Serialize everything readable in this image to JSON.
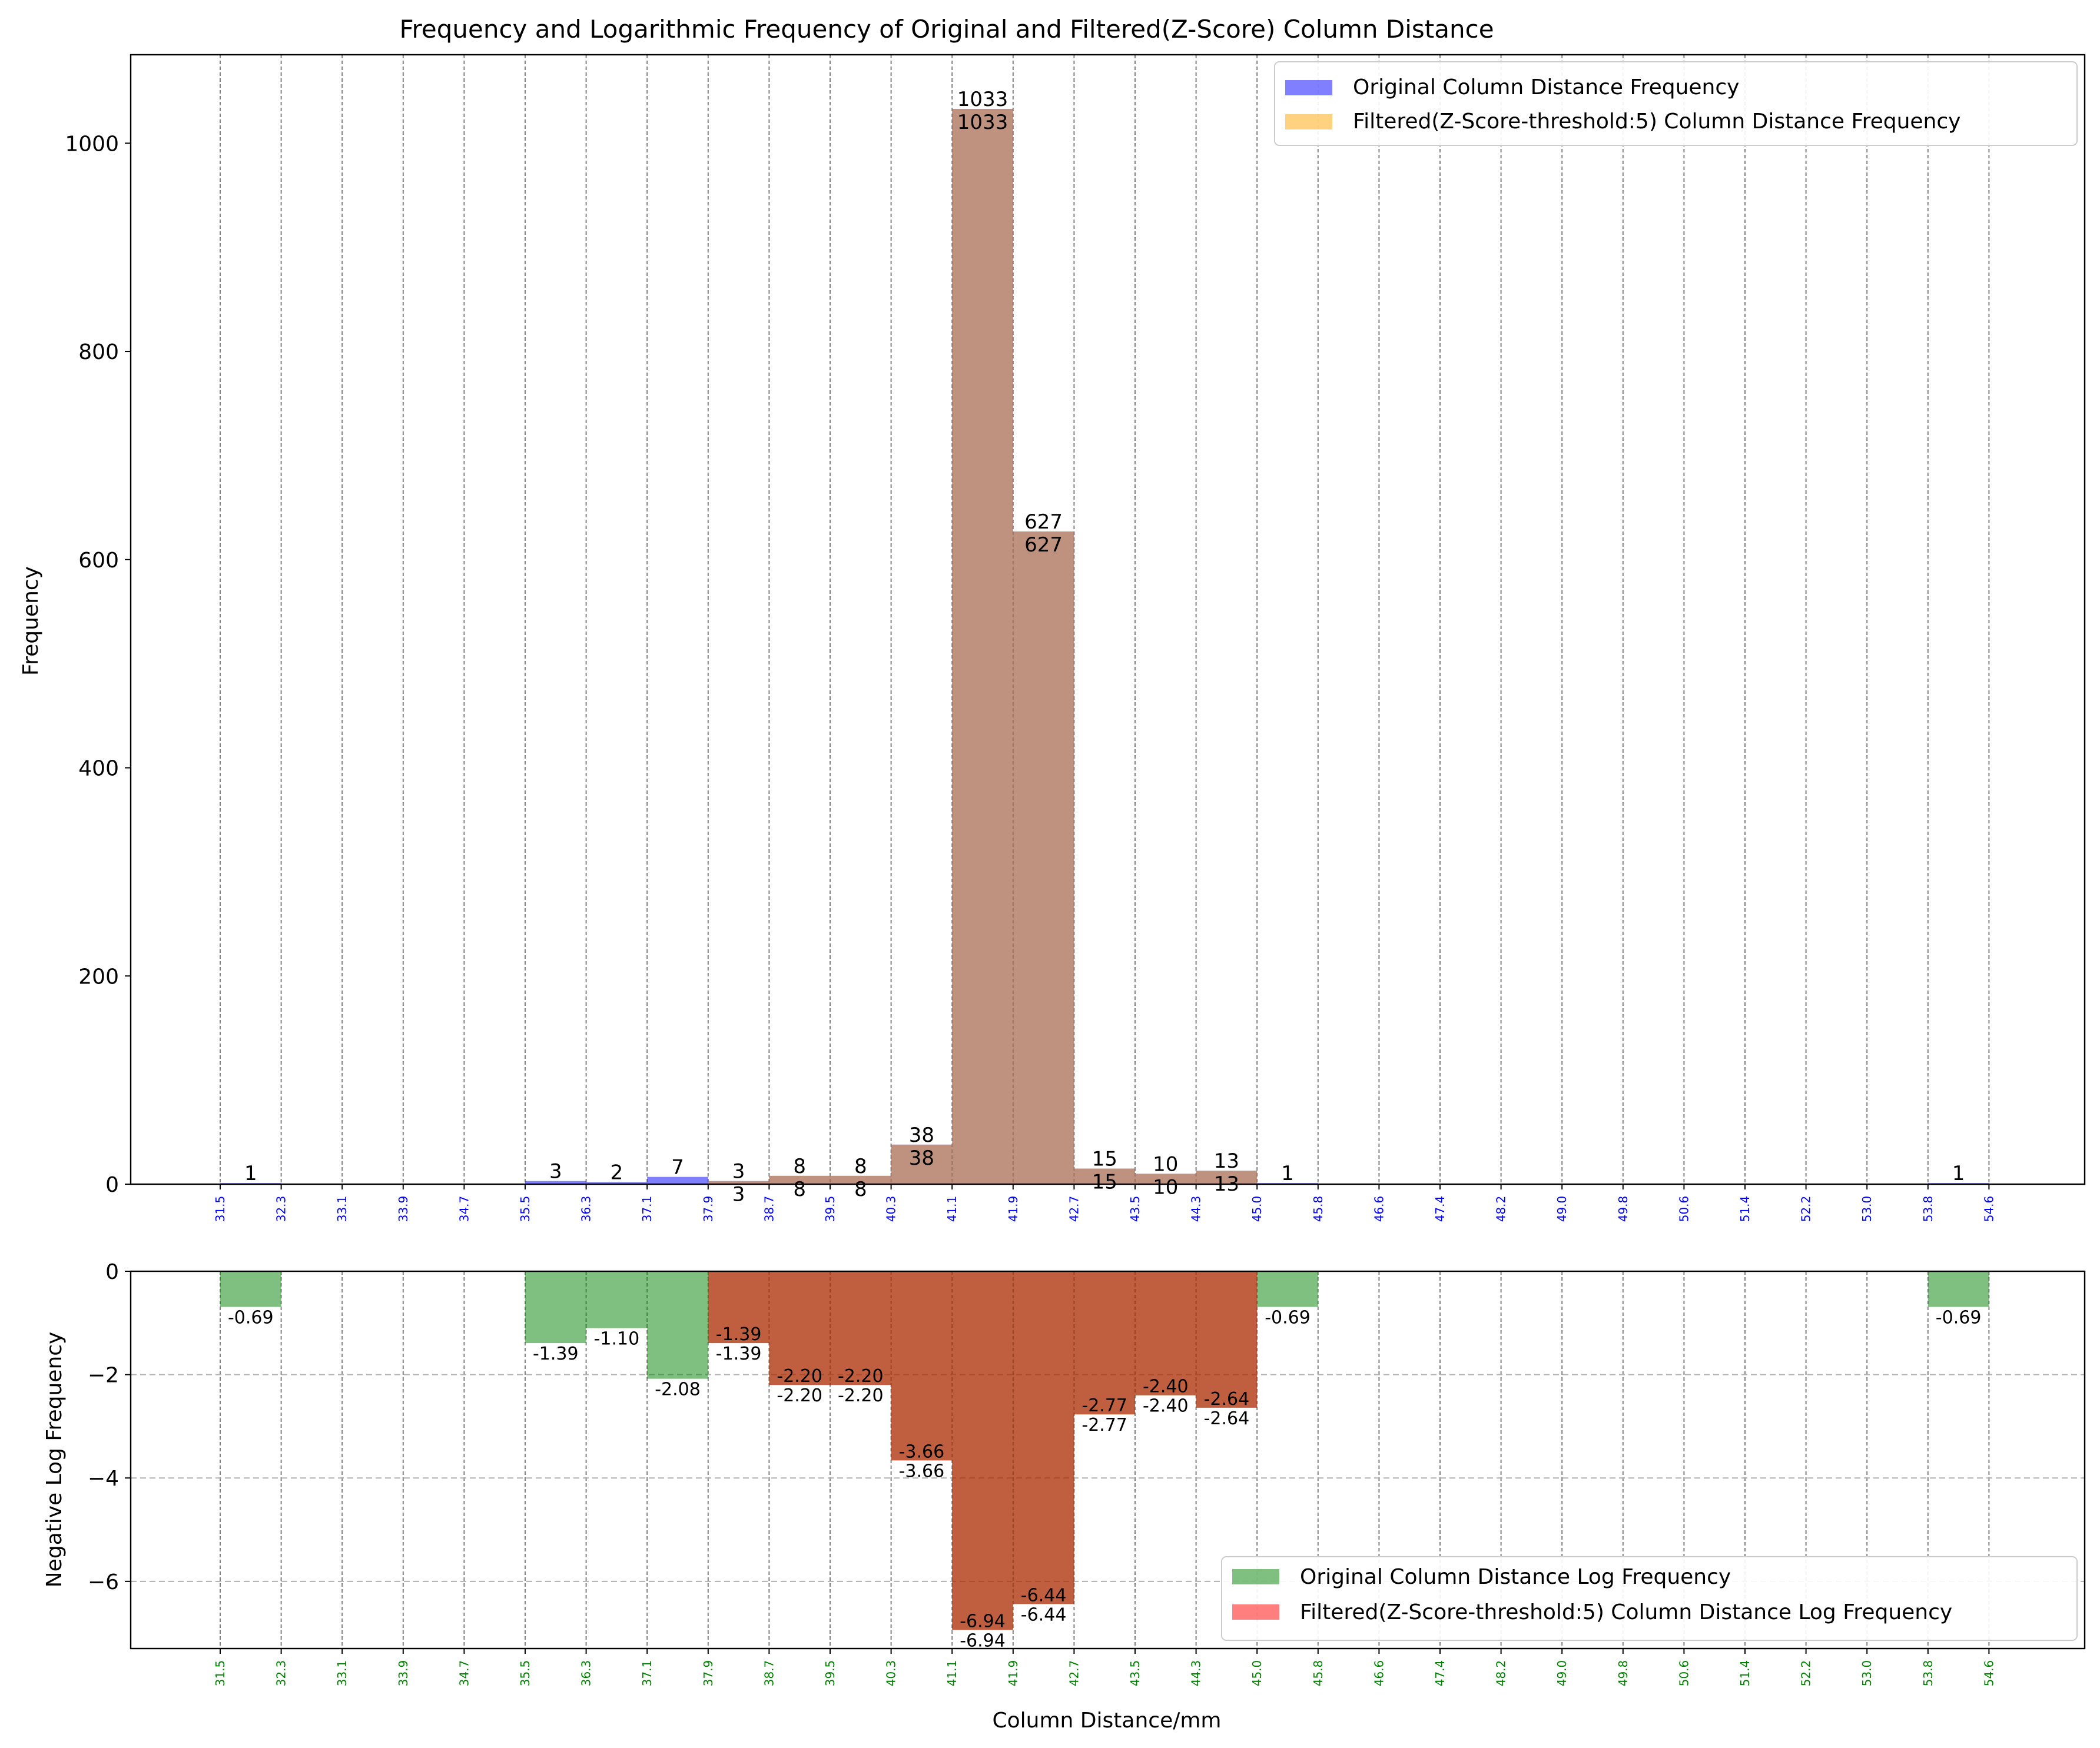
{
  "chart_data": [
    {
      "type": "bar",
      "title": "Frequency and Logarithmic Frequency of Original and Filtered(Z-Score) Column Distance",
      "ylabel": "Frequency",
      "ylim": [
        0,
        1085
      ],
      "yticks": [
        0,
        200,
        400,
        600,
        800,
        1000
      ],
      "bin_edges": [
        "31.5",
        "32.3",
        "33.1",
        "33.9",
        "34.7",
        "35.5",
        "36.3",
        "37.1",
        "37.9",
        "38.7",
        "39.5",
        "40.3",
        "41.1",
        "41.9",
        "42.7",
        "43.5",
        "44.3",
        "45.0",
        "45.8",
        "46.6",
        "47.4",
        "48.2",
        "49.0",
        "49.8",
        "50.6",
        "51.4",
        "52.2",
        "53.0",
        "53.8",
        "54.6"
      ],
      "bin_edge_color": "#0000ff",
      "grid": "vertical dashed",
      "legend_position": "top-right",
      "series": [
        {
          "name": "Original Column Distance Frequency",
          "color": "#0000ff",
          "values": [
            1,
            0,
            0,
            0,
            0,
            3,
            2,
            7,
            3,
            8,
            8,
            38,
            1033,
            627,
            15,
            10,
            13,
            1,
            0,
            0,
            0,
            0,
            0,
            0,
            0,
            0,
            0,
            0,
            1
          ],
          "labels": [
            "1",
            null,
            null,
            null,
            null,
            "3",
            "2",
            "7",
            "3",
            "8",
            "8",
            "38",
            "1033",
            "627",
            "15",
            "10",
            "13",
            "1",
            null,
            null,
            null,
            null,
            null,
            null,
            null,
            null,
            null,
            null,
            "1"
          ]
        },
        {
          "name": "Filtered(Z-Score-threshold:5) Column Distance Frequency",
          "color": "#ffa500",
          "values": [
            0,
            0,
            0,
            0,
            0,
            0,
            0,
            0,
            3,
            8,
            8,
            38,
            1033,
            627,
            15,
            10,
            13,
            0,
            0,
            0,
            0,
            0,
            0,
            0,
            0,
            0,
            0,
            0,
            0
          ],
          "labels": [
            null,
            null,
            null,
            null,
            null,
            null,
            null,
            null,
            "3",
            "8",
            "8",
            "38",
            "1033",
            "627",
            "15",
            "10",
            "13",
            null,
            null,
            null,
            null,
            null,
            null,
            null,
            null,
            null,
            null,
            null,
            null
          ]
        }
      ]
    },
    {
      "type": "bar",
      "xlabel": "Column Distance/mm",
      "ylabel": "Negative Log Frequency",
      "ylim": [
        -7.3,
        0
      ],
      "yticks": [
        -6,
        -4,
        -2,
        0
      ],
      "bin_edges": [
        "31.5",
        "32.3",
        "33.1",
        "33.9",
        "34.7",
        "35.5",
        "36.3",
        "37.1",
        "37.9",
        "38.7",
        "39.5",
        "40.3",
        "41.1",
        "41.9",
        "42.7",
        "43.5",
        "44.3",
        "45.0",
        "45.8",
        "46.6",
        "47.4",
        "48.2",
        "49.0",
        "49.8",
        "50.6",
        "51.4",
        "52.2",
        "53.0",
        "53.8",
        "54.6"
      ],
      "bin_edge_color": "#008000",
      "grid": "both dashed",
      "legend_position": "bottom-right",
      "series": [
        {
          "name": "Original Column Distance Log Frequency",
          "color": "#008000",
          "values": [
            -0.69,
            0,
            0,
            0,
            0,
            -1.39,
            -1.1,
            -2.08,
            -1.39,
            -2.2,
            -2.2,
            -3.66,
            -6.94,
            -6.44,
            -2.77,
            -2.4,
            -2.64,
            -0.69,
            0,
            0,
            0,
            0,
            0,
            0,
            0,
            0,
            0,
            0,
            -0.69
          ],
          "labels": [
            "-0.69",
            null,
            null,
            null,
            null,
            "-1.39",
            "-1.10",
            "-2.08",
            "-1.39",
            "-2.20",
            "-2.20",
            "-3.66",
            "-6.94",
            "-6.44",
            "-2.77",
            "-2.40",
            "-2.64",
            "-0.69",
            null,
            null,
            null,
            null,
            null,
            null,
            null,
            null,
            null,
            null,
            "-0.69"
          ]
        },
        {
          "name": "Filtered(Z-Score-threshold:5) Column Distance Log Frequency",
          "color": "#ff0000",
          "values": [
            0,
            0,
            0,
            0,
            0,
            0,
            0,
            0,
            -1.39,
            -2.2,
            -2.2,
            -3.66,
            -6.94,
            -6.44,
            -2.77,
            -2.4,
            -2.64,
            0,
            0,
            0,
            0,
            0,
            0,
            0,
            0,
            0,
            0,
            0,
            0
          ],
          "labels": [
            null,
            null,
            null,
            null,
            null,
            null,
            null,
            null,
            "-1.39",
            "-2.20",
            "-2.20",
            "-3.66",
            "-6.94",
            "-6.44",
            "-2.77",
            "-2.40",
            "-2.64",
            null,
            null,
            null,
            null,
            null,
            null,
            null,
            null,
            null,
            null,
            null,
            null
          ]
        }
      ]
    }
  ]
}
